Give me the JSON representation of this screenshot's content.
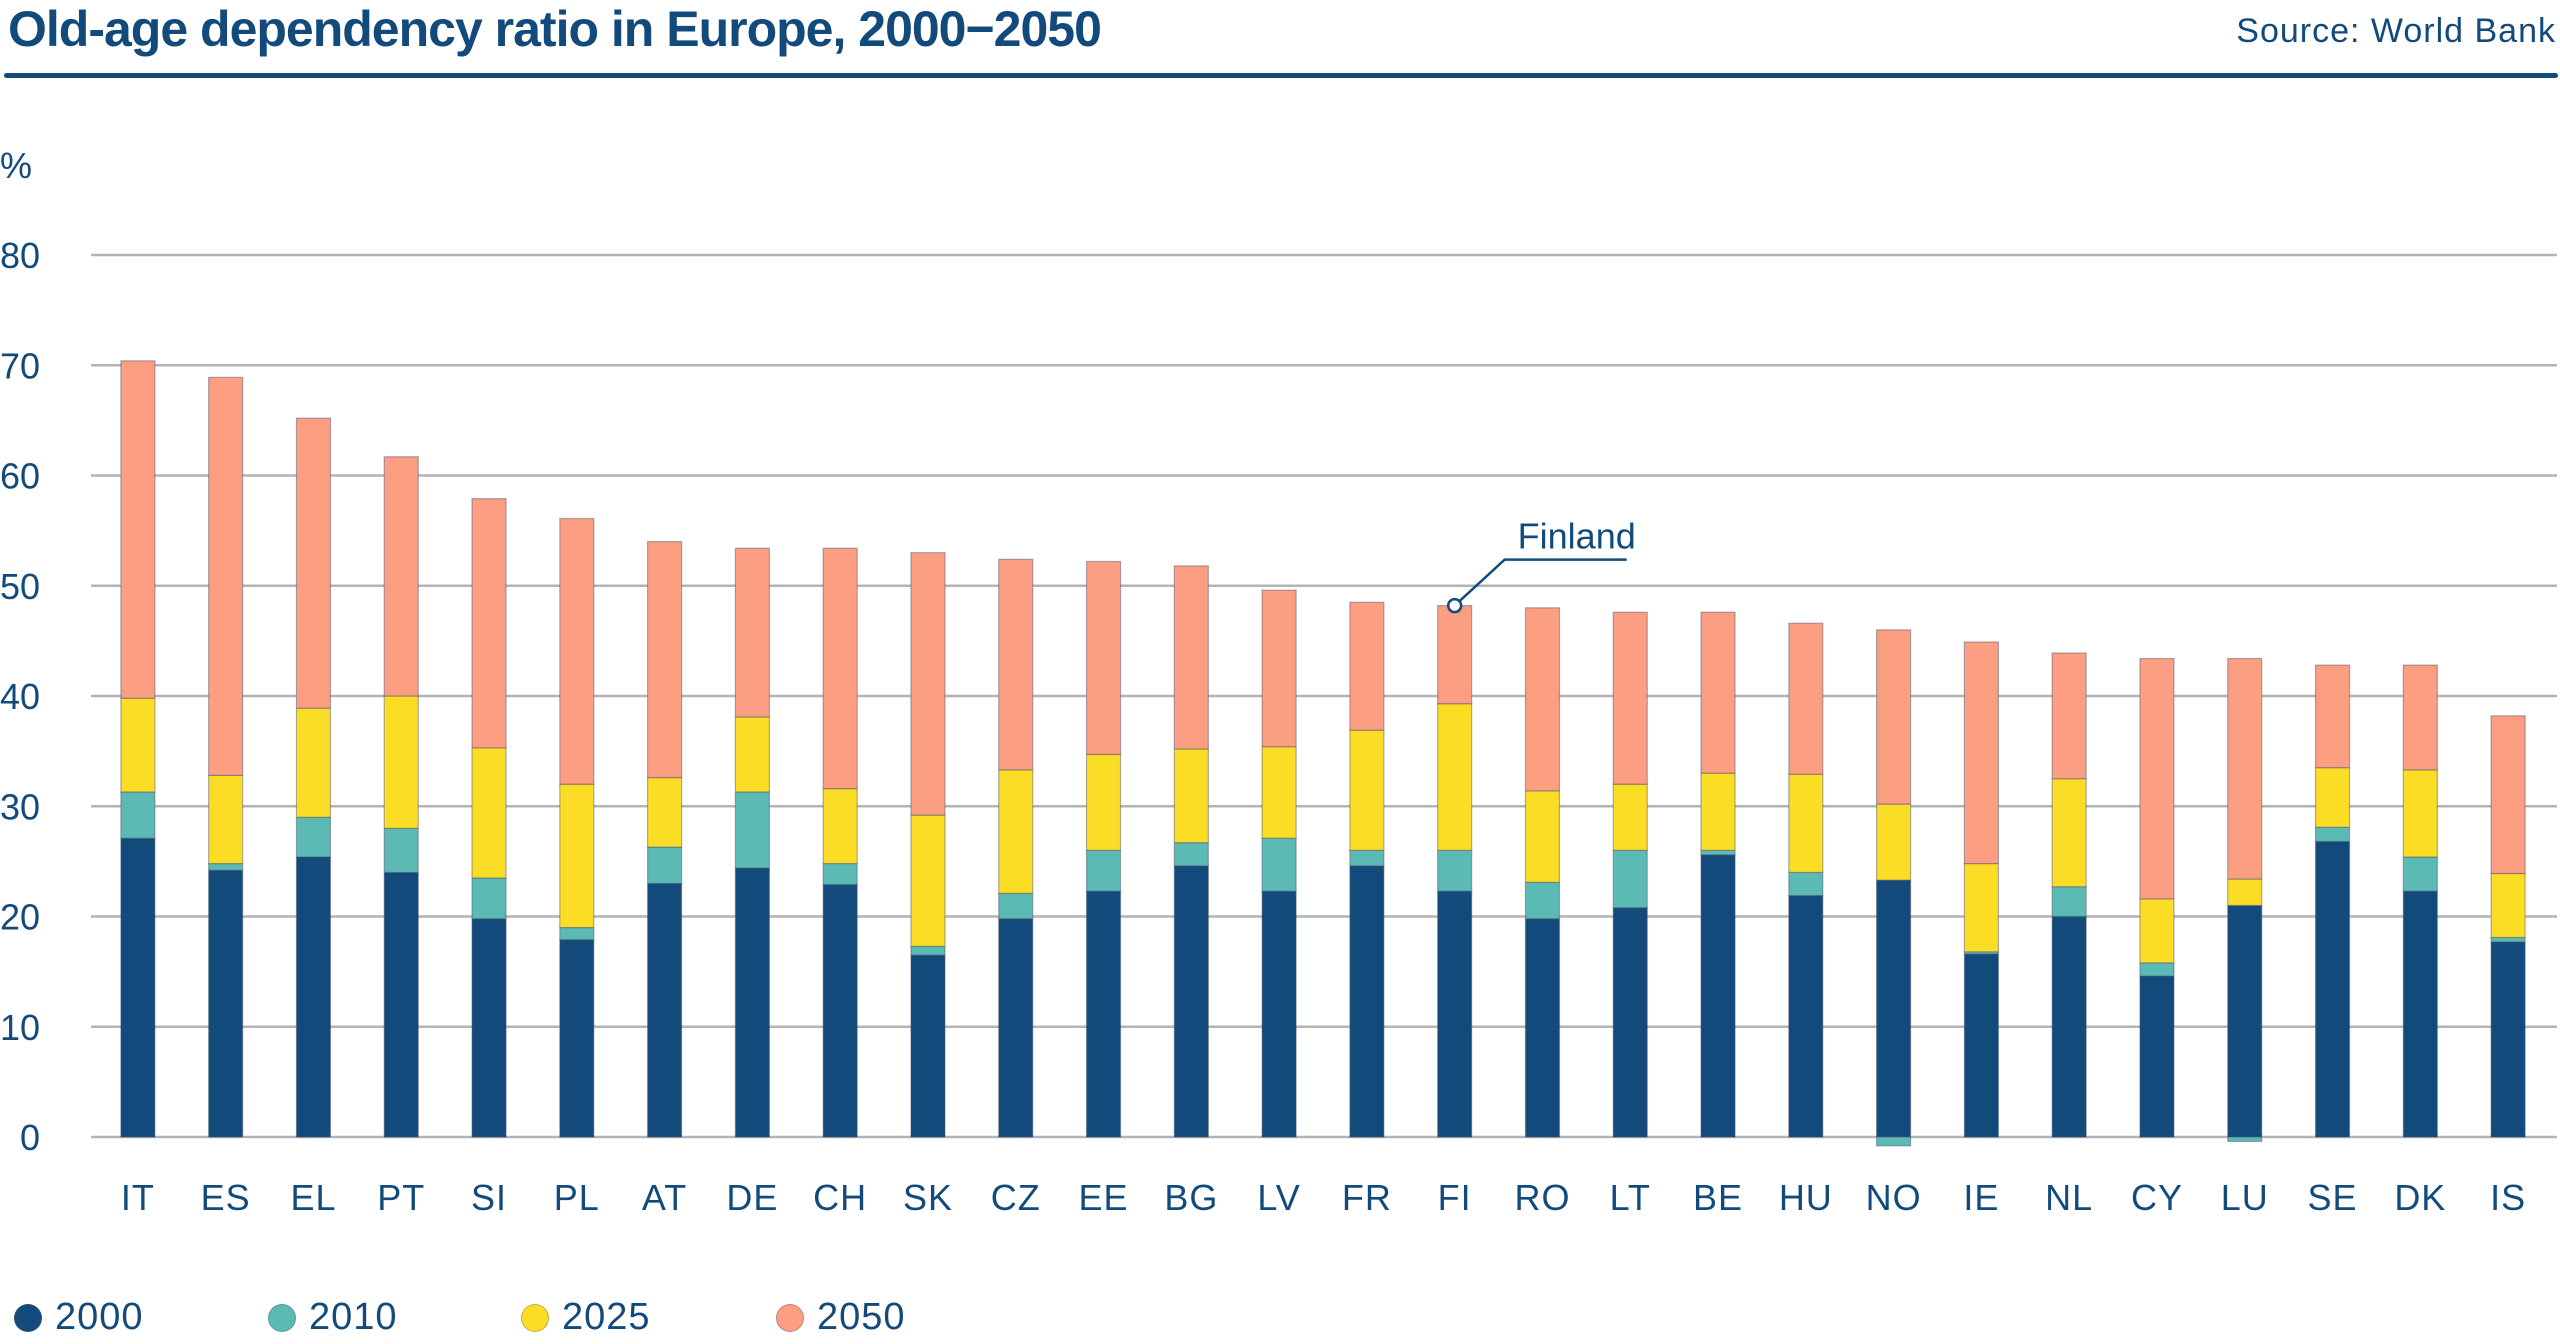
{
  "header": {
    "title": "Old-age dependency ratio in Europe, 2000−2050",
    "source": "Source: World Bank"
  },
  "colors": {
    "text": "#134a7c",
    "grid": "#b4b4b4",
    "2000": "#134a7c",
    "2010": "#5cbab5",
    "2025": "#fcdd26",
    "2050": "#fb9e82"
  },
  "annotation": {
    "label": "Finland",
    "category": "FI"
  },
  "chart_data": {
    "type": "bar",
    "stacked": true,
    "title": "Old-age dependency ratio in Europe, 2000−2050",
    "xlabel": "",
    "ylabel": "%",
    "ylim": [
      0,
      80
    ],
    "yticks": [
      0,
      10,
      20,
      30,
      40,
      50,
      60,
      70,
      80
    ],
    "grid": true,
    "legend_position": "bottom-left",
    "categories": [
      "IT",
      "ES",
      "EL",
      "PT",
      "SI",
      "PL",
      "AT",
      "DE",
      "CH",
      "SK",
      "CZ",
      "EE",
      "BG",
      "LV",
      "FR",
      "FI",
      "RO",
      "LT",
      "BE",
      "HU",
      "NO",
      "IE",
      "NL",
      "CY",
      "LU",
      "SE",
      "DK",
      "IS"
    ],
    "series": [
      {
        "name": "2000",
        "color_key": "2000",
        "values": [
          27.1,
          24.2,
          25.4,
          24.0,
          19.8,
          17.9,
          23.0,
          24.4,
          22.9,
          16.5,
          19.8,
          22.3,
          24.6,
          22.3,
          24.6,
          22.3,
          19.8,
          20.8,
          25.6,
          21.9,
          23.3,
          16.6,
          20.0,
          14.6,
          21.0,
          26.8,
          22.3,
          17.7
        ]
      },
      {
        "name": "2010",
        "color_key": "2010",
        "values": [
          4.2,
          0.6,
          3.6,
          4.0,
          3.7,
          1.1,
          3.3,
          6.9,
          1.9,
          0.8,
          2.3,
          3.7,
          2.1,
          4.8,
          1.4,
          3.7,
          3.3,
          5.2,
          0.4,
          2.1,
          -0.8,
          0.2,
          2.7,
          1.2,
          -0.4,
          1.3,
          3.1,
          0.4
        ]
      },
      {
        "name": "2025",
        "color_key": "2025",
        "values": [
          8.5,
          8.0,
          9.9,
          12.0,
          11.8,
          13.0,
          6.3,
          6.8,
          6.8,
          11.9,
          11.2,
          8.7,
          8.5,
          8.3,
          10.9,
          13.3,
          8.3,
          6.0,
          7.0,
          8.9,
          6.9,
          8.0,
          9.8,
          5.8,
          2.4,
          5.4,
          7.9,
          5.8
        ]
      },
      {
        "name": "2050",
        "color_key": "2050",
        "values": [
          30.6,
          36.1,
          26.3,
          21.7,
          22.6,
          24.1,
          21.4,
          15.3,
          21.8,
          23.8,
          19.1,
          17.5,
          16.6,
          14.2,
          11.6,
          8.9,
          16.6,
          15.6,
          14.6,
          13.7,
          15.8,
          20.1,
          11.4,
          21.8,
          20.0,
          9.3,
          9.5,
          14.3
        ]
      }
    ]
  }
}
